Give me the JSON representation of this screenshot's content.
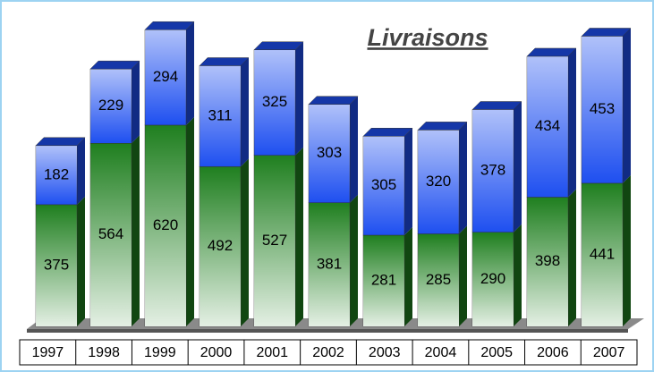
{
  "chart_data": {
    "type": "bar",
    "stacked": true,
    "title": "Livraisons",
    "categories": [
      "1997",
      "1998",
      "1999",
      "2000",
      "2001",
      "2002",
      "2003",
      "2004",
      "2005",
      "2006",
      "2007"
    ],
    "series": [
      {
        "color": "#1f7f1f",
        "values": [
          375,
          564,
          620,
          492,
          527,
          381,
          281,
          285,
          290,
          398,
          441
        ]
      },
      {
        "color": "#1e4ff0",
        "values": [
          182,
          229,
          294,
          311,
          325,
          303,
          305,
          320,
          378,
          434,
          453
        ]
      }
    ]
  }
}
